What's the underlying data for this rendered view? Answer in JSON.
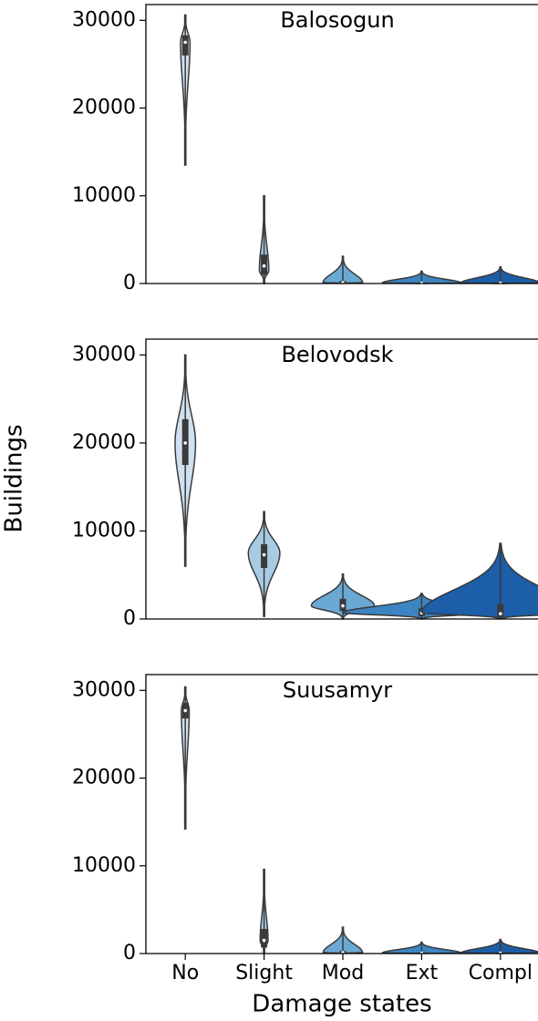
{
  "chart_data": [
    {
      "type": "violin",
      "title": "Balosogun",
      "ylim": [
        0,
        31800
      ],
      "yticks": [
        0,
        10000,
        20000,
        30000
      ],
      "colors": [
        "#cfe0f0",
        "#a7cbe3",
        "#6aa9d3",
        "#3c85c2",
        "#1c5ea8"
      ],
      "min": [
        13500,
        0,
        0,
        0,
        0
      ],
      "q1": [
        26000,
        1000,
        0,
        0,
        0
      ],
      "median": [
        27500,
        2000,
        100,
        50,
        50
      ],
      "q3": [
        28300,
        3300,
        300,
        150,
        150
      ],
      "max": [
        30600,
        10000,
        3100,
        1400,
        1900
      ],
      "mode": [
        27500,
        1500,
        100,
        50,
        50
      ],
      "widths": [
        0.06,
        0.06,
        0.25,
        0.5,
        0.5
      ]
    },
    {
      "type": "violin",
      "title": "Belovodsk",
      "ylabel": "Buildings",
      "ylim": [
        0,
        31800
      ],
      "yticks": [
        0,
        10000,
        20000,
        30000
      ],
      "colors": [
        "#cfe0f0",
        "#a7cbe3",
        "#6aa9d3",
        "#3c85c2",
        "#1c5ea8"
      ],
      "min": [
        6000,
        300,
        0,
        0,
        0
      ],
      "q1": [
        17500,
        5800,
        900,
        300,
        200
      ],
      "median": [
        20000,
        7300,
        1500,
        700,
        600
      ],
      "q3": [
        22700,
        8500,
        2300,
        1200,
        1700
      ],
      "max": [
        30000,
        12200,
        5100,
        2900,
        8600
      ],
      "mode": [
        20000,
        7500,
        1500,
        700,
        700
      ],
      "widths": [
        0.13,
        0.2,
        0.4,
        1.0,
        1.0
      ]
    },
    {
      "type": "violin",
      "title": "Suusamyr",
      "xlabel": "Damage states",
      "categories": [
        "No",
        "Slight",
        "Mod",
        "Ext",
        "Compl"
      ],
      "ylim": [
        0,
        31800
      ],
      "yticks": [
        0,
        10000,
        20000,
        30000
      ],
      "colors": [
        "#cfe0f0",
        "#a7cbe3",
        "#6aa9d3",
        "#3c85c2",
        "#1c5ea8"
      ],
      "min": [
        14200,
        0,
        0,
        0,
        0
      ],
      "q1": [
        26800,
        700,
        0,
        0,
        0
      ],
      "median": [
        27700,
        1500,
        100,
        50,
        50
      ],
      "q3": [
        28600,
        2800,
        300,
        150,
        150
      ],
      "max": [
        30400,
        9600,
        3000,
        1300,
        1600
      ],
      "mode": [
        27700,
        1500,
        100,
        50,
        50
      ],
      "widths": [
        0.05,
        0.05,
        0.25,
        0.5,
        0.5
      ]
    }
  ]
}
